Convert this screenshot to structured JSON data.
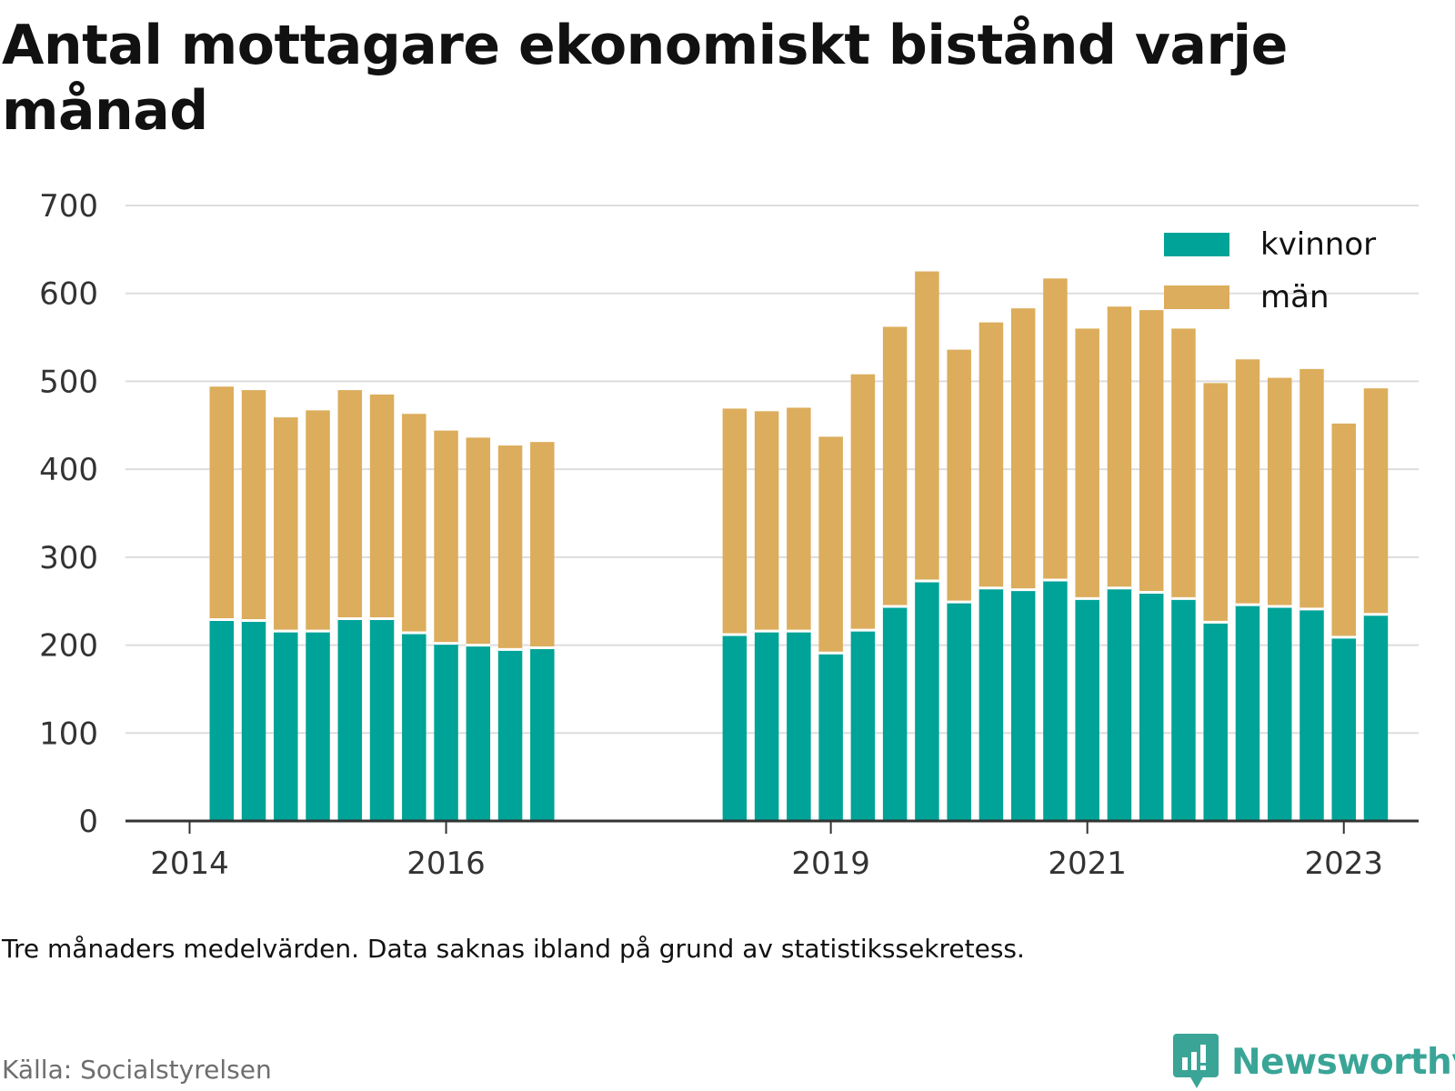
{
  "title": "Antal mottagare ekonomiskt bistånd varje månad",
  "note": "Tre månaders medelvärden. Data saknas ibland på grund av statistikssekretess.",
  "source": "Källa: Socialstyrelsen",
  "brand": {
    "name": "Newsworthy",
    "icon": "newsworthy-logo-icon"
  },
  "colors": {
    "kvinnor": "#00a397",
    "man": "#dcad5c",
    "grid": "#dddddd",
    "axis": "#333333"
  },
  "legend": [
    {
      "label": "kvinnor",
      "color": "#00a397"
    },
    {
      "label": "män",
      "color": "#dcad5c"
    }
  ],
  "chart_data": {
    "type": "bar",
    "stacked": true,
    "x_type": "date",
    "xlim": [
      "2013-07-01",
      "2023-08-01"
    ],
    "x_ticks": [
      "2014",
      "2016",
      "2019",
      "2021",
      "2023"
    ],
    "y_ticks": [
      0,
      100,
      200,
      300,
      400,
      500,
      600,
      700
    ],
    "ylim": [
      0,
      700
    ],
    "grid": true,
    "legend_position": "top-right",
    "categories": [
      "2014-04",
      "2014-07",
      "2014-10",
      "2015-01",
      "2015-04",
      "2015-07",
      "2015-10",
      "2016-01",
      "2016-04",
      "2016-07",
      "2016-10",
      "2018-04",
      "2018-07",
      "2018-10",
      "2019-01",
      "2019-04",
      "2019-07",
      "2019-10",
      "2020-01",
      "2020-04",
      "2020-07",
      "2020-10",
      "2021-01",
      "2021-04",
      "2021-07",
      "2021-10",
      "2022-01",
      "2022-04",
      "2022-07",
      "2022-10",
      "2023-01",
      "2023-04"
    ],
    "series": [
      {
        "name": "kvinnor",
        "values": [
          229,
          228,
          216,
          216,
          230,
          230,
          214,
          202,
          200,
          195,
          197,
          212,
          216,
          216,
          191,
          217,
          244,
          273,
          249,
          265,
          263,
          274,
          253,
          265,
          260,
          253,
          226,
          246,
          244,
          241,
          209,
          235
        ]
      },
      {
        "name": "män",
        "values": [
          265,
          262,
          243,
          251,
          260,
          255,
          249,
          242,
          236,
          232,
          234,
          257,
          250,
          254,
          246,
          291,
          318,
          352,
          287,
          302,
          320,
          343,
          307,
          320,
          321,
          307,
          272,
          279,
          260,
          273,
          243,
          257
        ]
      }
    ]
  }
}
